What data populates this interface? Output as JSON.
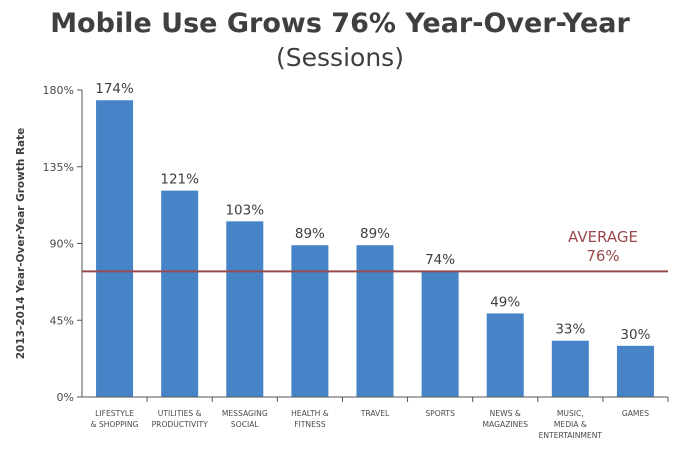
{
  "chart_data": {
    "type": "bar",
    "title": "Mobile Use Grows 76% Year-Over-Year",
    "subtitle": "(Sessions)",
    "xlabel": "",
    "ylabel": "2013-2014 Year-Over-Year Growth Rate",
    "ylim": [
      0,
      180
    ],
    "yticks": [
      0,
      45,
      90,
      135,
      180
    ],
    "ytick_labels": [
      "0%",
      "45%",
      "90%",
      "135%",
      "180%"
    ],
    "grid": false,
    "categories": [
      [
        "LIFESTYLE",
        "& SHOPPING"
      ],
      [
        "UTILITIES &",
        "PRODUCTIVITY"
      ],
      [
        "MESSAGING",
        "SOCIAL"
      ],
      [
        "HEALTH &",
        "FITNESS"
      ],
      [
        "TRAVEL"
      ],
      [
        "SPORTS"
      ],
      [
        "NEWS &",
        "MAGAZINES"
      ],
      [
        "MUSIC,",
        "MEDIA &",
        "ENTERTAINMENT"
      ],
      [
        "GAMES"
      ]
    ],
    "values": [
      174,
      121,
      103,
      89,
      89,
      74,
      49,
      33,
      30
    ],
    "value_labels": [
      "174%",
      "121%",
      "103%",
      "89%",
      "89%",
      "74%",
      "49%",
      "33%",
      "30%"
    ],
    "average": {
      "value": 76,
      "label_line1": "AVERAGE",
      "label_line2": "76%"
    },
    "colors": {
      "bar": "#4684c7",
      "average_line": "#9a4a4c",
      "axis": "#555555",
      "text": "#3f3f3f"
    }
  }
}
